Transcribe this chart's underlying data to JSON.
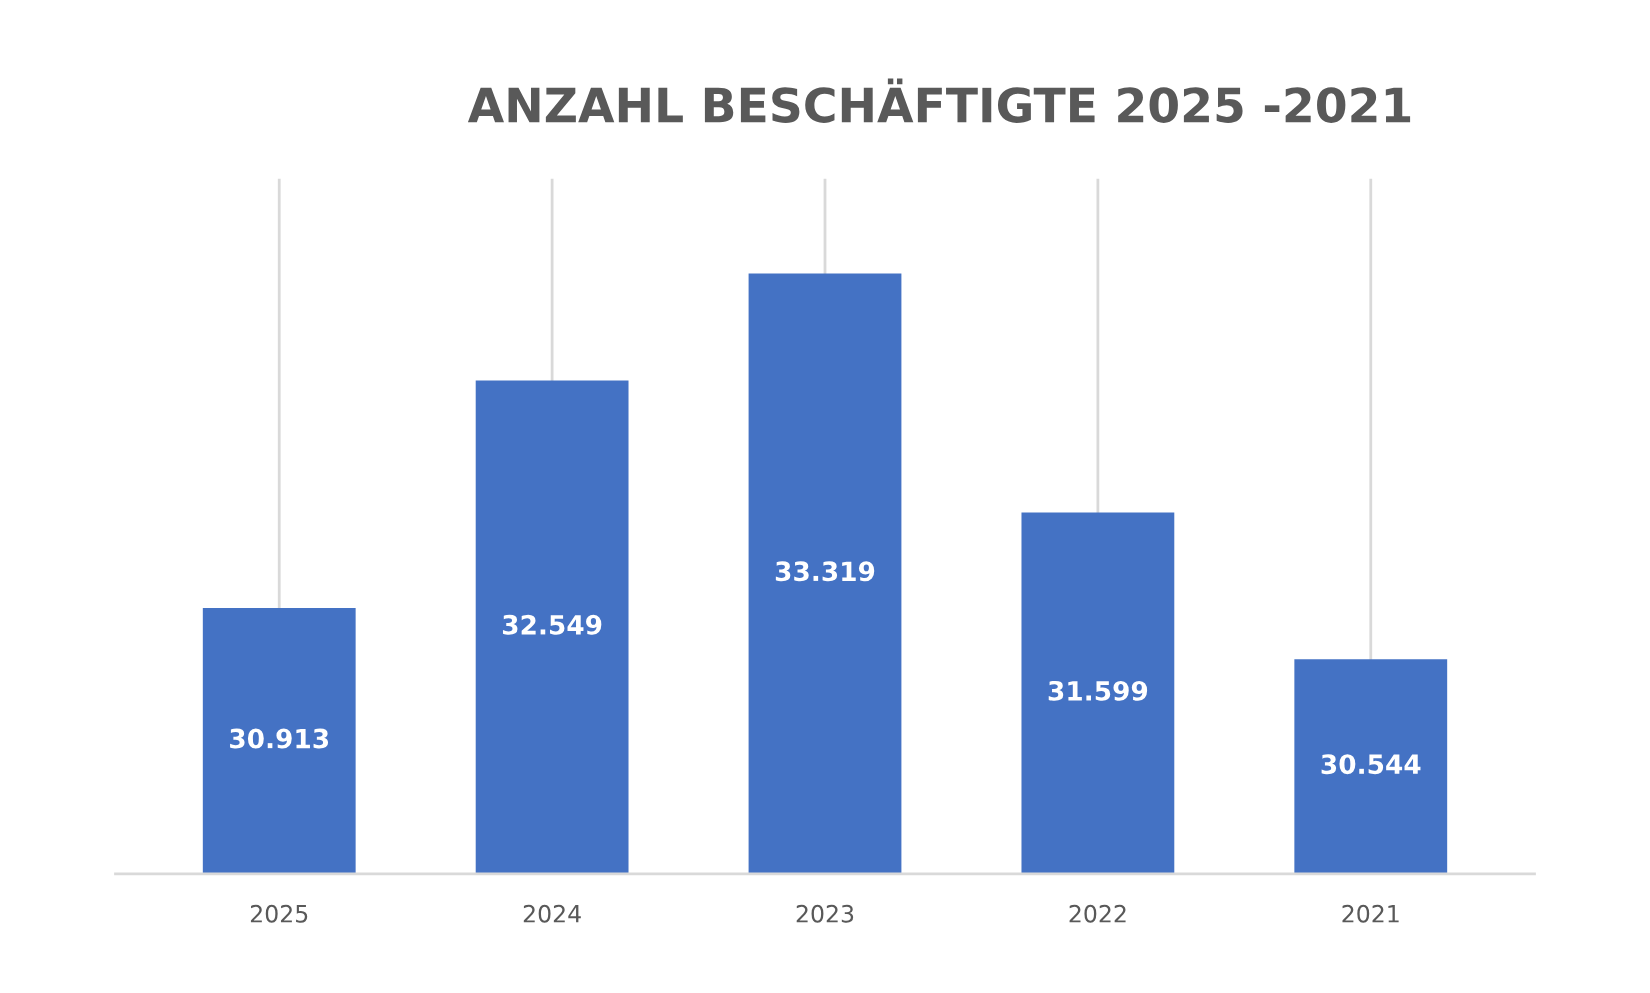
{
  "chart_data": {
    "type": "bar",
    "title": "ANZAHL BESCHÄFTIGTE 2025 -2021",
    "categories": [
      "2025",
      "2024",
      "2023",
      "2022",
      "2021"
    ],
    "values": [
      30913,
      32549,
      33319,
      31599,
      30544
    ],
    "value_labels": [
      "30.913",
      "32.549",
      "33.319",
      "31.599",
      "30.544"
    ],
    "color": "#4472c4",
    "ylim": [
      29000,
      34000
    ],
    "tick_labels": "x",
    "grid": "x"
  }
}
